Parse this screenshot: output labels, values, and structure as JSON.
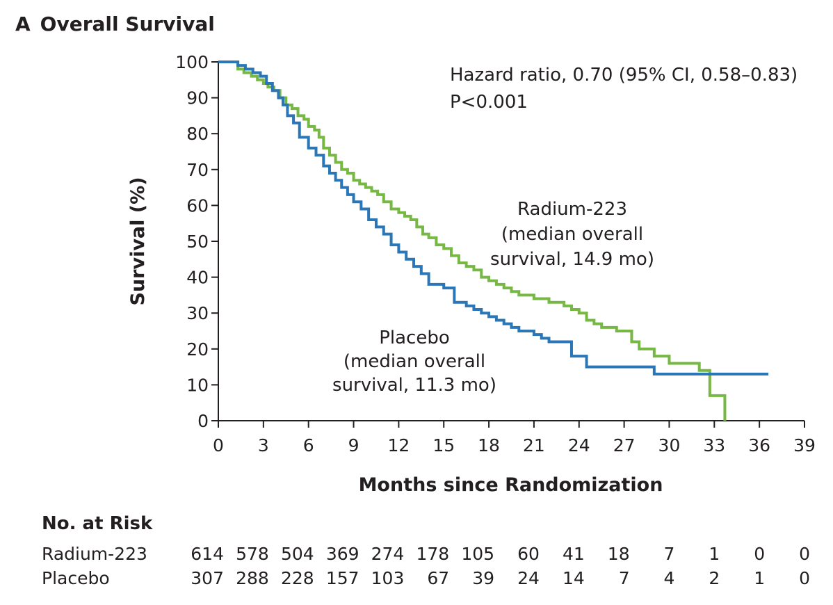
{
  "panel": {
    "letter": "A",
    "title": "Overall Survival"
  },
  "chart_data": {
    "type": "line",
    "step": true,
    "xlabel": "Months since Randomization",
    "ylabel": "Survival (%)",
    "xlim": [
      0,
      39
    ],
    "ylim": [
      0,
      100
    ],
    "xticks": [
      0,
      3,
      6,
      9,
      12,
      15,
      18,
      21,
      24,
      27,
      30,
      33,
      36,
      39
    ],
    "yticks": [
      0,
      10,
      20,
      30,
      40,
      50,
      60,
      70,
      80,
      90,
      100
    ],
    "grid": false,
    "colors": {
      "radium": "#76b843",
      "placebo": "#2a76b7",
      "axis": "#231f20"
    },
    "annotations": {
      "stats": [
        "Hazard ratio, 0.70 (95% CI, 0.58–0.83)",
        "P<0.001"
      ],
      "radium": [
        "Radium-223",
        "(median overall",
        "survival, 14.9 mo)"
      ],
      "placebo": [
        "Placebo",
        "(median overall",
        "survival, 11.3 mo)"
      ]
    },
    "series": [
      {
        "key": "radium",
        "x": [
          0,
          1.3,
          1.7,
          2.2,
          2.6,
          3.0,
          3.3,
          3.7,
          4.1,
          4.5,
          4.9,
          5.3,
          5.7,
          6.0,
          6.4,
          6.7,
          7.0,
          7.4,
          7.8,
          8.2,
          8.6,
          9.0,
          9.4,
          9.8,
          10.2,
          10.6,
          11.0,
          11.5,
          12.0,
          12.4,
          12.8,
          13.2,
          13.6,
          14.0,
          14.5,
          15.0,
          15.5,
          16.0,
          16.5,
          17.0,
          17.5,
          18.0,
          18.5,
          19.0,
          19.5,
          20.0,
          20.5,
          21.0,
          21.5,
          22.0,
          22.5,
          23.0,
          23.5,
          24.0,
          24.5,
          25.0,
          25.5,
          26.0,
          26.5,
          27.0,
          27.5,
          28.0,
          29.0,
          30.0,
          32.0,
          32.7,
          33.7
        ],
        "y": [
          100,
          98,
          97,
          96,
          95,
          94,
          93,
          92,
          90,
          88,
          87,
          85,
          84,
          82,
          81,
          79,
          76,
          74,
          72,
          70,
          69,
          67,
          66,
          65,
          64,
          63,
          61,
          59,
          58,
          57,
          56,
          54,
          52,
          51,
          49,
          48,
          46,
          44,
          43,
          42,
          40,
          39,
          38,
          37,
          36,
          35,
          35,
          34,
          34,
          33,
          33,
          32,
          31,
          30,
          28,
          27,
          26,
          26,
          25,
          25,
          22,
          20,
          18,
          16,
          14,
          7,
          0
        ]
      },
      {
        "key": "placebo",
        "x": [
          0,
          1.3,
          1.8,
          2.3,
          2.8,
          3.2,
          3.6,
          4.0,
          4.3,
          4.6,
          5.0,
          5.4,
          6.0,
          6.5,
          7.0,
          7.4,
          7.8,
          8.2,
          8.6,
          9.0,
          9.5,
          10.0,
          10.5,
          11.0,
          11.5,
          12.0,
          12.5,
          13.0,
          13.5,
          14.0,
          15.0,
          15.7,
          16.5,
          17.0,
          17.5,
          18.0,
          18.5,
          19.0,
          19.5,
          20.0,
          21.0,
          21.5,
          22.0,
          22.5,
          23.5,
          24.5,
          25.0,
          26.0,
          27.0,
          29.0,
          30.0,
          32.0,
          34.0,
          36.6
        ],
        "y": [
          100,
          99,
          98,
          97,
          96,
          94,
          92,
          90,
          88,
          85,
          83,
          79,
          76,
          74,
          71,
          69,
          67,
          65,
          63,
          61,
          59,
          56,
          54,
          52,
          49,
          47,
          45,
          43,
          41,
          38,
          37,
          33,
          32,
          31,
          30,
          29,
          28,
          27,
          26,
          25,
          24,
          23,
          22,
          22,
          18,
          15,
          15,
          15,
          15,
          13,
          13,
          13,
          13,
          13
        ]
      }
    ]
  },
  "risk_table": {
    "heading": "No. at Risk",
    "rows": [
      {
        "label": "Radium-223",
        "values": [
          "614",
          "578",
          "504",
          "369",
          "274",
          "178",
          "105",
          "60",
          "41",
          "18",
          "7",
          "1",
          "0",
          "0"
        ]
      },
      {
        "label": "Placebo",
        "values": [
          "307",
          "288",
          "228",
          "157",
          "103",
          "67",
          "39",
          "24",
          "14",
          "7",
          "4",
          "2",
          "1",
          "0"
        ]
      }
    ]
  }
}
